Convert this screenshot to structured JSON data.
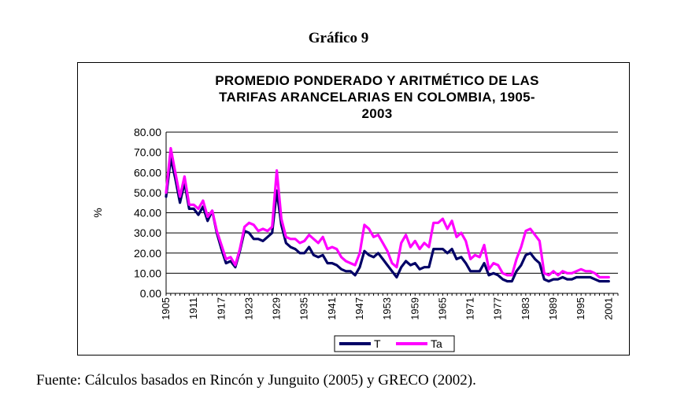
{
  "figure_label": "Gráfico 9",
  "source_note": "Fuente: Cálculos basados en Rincón y Junguito (2005) y GRECO (2002).",
  "chart_data": {
    "type": "line",
    "title_lines": [
      "PROMEDIO PONDERADO Y ARITMÉTICO DE LAS",
      "TARIFAS ARANCELARIAS EN COLOMBIA, 1905-",
      "2003"
    ],
    "ylabel": "%",
    "xlabel": "",
    "ylim": [
      0,
      80
    ],
    "yticks": [
      "0.00",
      "10.00",
      "20.00",
      "30.00",
      "40.00",
      "50.00",
      "60.00",
      "70.00",
      "80.00"
    ],
    "xlim": [
      1905,
      2003
    ],
    "xticks": [
      "1905",
      "1911",
      "1917",
      "1923",
      "1929",
      "1935",
      "1941",
      "1947",
      "1953",
      "1959",
      "1965",
      "1971",
      "1977",
      "1983",
      "1989",
      "1995",
      "2001"
    ],
    "grid": "horizontal",
    "legend_position": "bottom",
    "series": [
      {
        "name": "T",
        "color": "#000066",
        "points": [
          [
            1905,
            48
          ],
          [
            1906,
            67
          ],
          [
            1907,
            57
          ],
          [
            1908,
            45
          ],
          [
            1909,
            55
          ],
          [
            1910,
            42
          ],
          [
            1911,
            42
          ],
          [
            1912,
            39
          ],
          [
            1913,
            43
          ],
          [
            1914,
            36
          ],
          [
            1915,
            41
          ],
          [
            1916,
            30
          ],
          [
            1917,
            22
          ],
          [
            1918,
            15
          ],
          [
            1919,
            16
          ],
          [
            1920,
            13
          ],
          [
            1921,
            21
          ],
          [
            1922,
            31
          ],
          [
            1923,
            30
          ],
          [
            1924,
            27
          ],
          [
            1925,
            27
          ],
          [
            1926,
            26
          ],
          [
            1927,
            28
          ],
          [
            1928,
            30
          ],
          [
            1929,
            51
          ],
          [
            1930,
            34
          ],
          [
            1931,
            25
          ],
          [
            1932,
            23
          ],
          [
            1933,
            22
          ],
          [
            1934,
            20
          ],
          [
            1935,
            20
          ],
          [
            1936,
            23
          ],
          [
            1937,
            19
          ],
          [
            1938,
            18
          ],
          [
            1939,
            19
          ],
          [
            1940,
            15
          ],
          [
            1941,
            15
          ],
          [
            1942,
            14
          ],
          [
            1943,
            12
          ],
          [
            1944,
            11
          ],
          [
            1945,
            11
          ],
          [
            1946,
            9
          ],
          [
            1947,
            13
          ],
          [
            1948,
            21
          ],
          [
            1949,
            19
          ],
          [
            1950,
            18
          ],
          [
            1951,
            20
          ],
          [
            1952,
            17
          ],
          [
            1953,
            14
          ],
          [
            1954,
            11
          ],
          [
            1955,
            8
          ],
          [
            1956,
            13
          ],
          [
            1957,
            16
          ],
          [
            1958,
            14
          ],
          [
            1959,
            15
          ],
          [
            1960,
            12
          ],
          [
            1961,
            13
          ],
          [
            1962,
            13
          ],
          [
            1963,
            22
          ],
          [
            1964,
            22
          ],
          [
            1965,
            22
          ],
          [
            1966,
            20
          ],
          [
            1967,
            22
          ],
          [
            1968,
            17
          ],
          [
            1969,
            18
          ],
          [
            1970,
            15
          ],
          [
            1971,
            11
          ],
          [
            1972,
            11
          ],
          [
            1973,
            11
          ],
          [
            1974,
            15
          ],
          [
            1975,
            9
          ],
          [
            1976,
            10
          ],
          [
            1977,
            9
          ],
          [
            1978,
            7
          ],
          [
            1979,
            6
          ],
          [
            1980,
            6
          ],
          [
            1981,
            11
          ],
          [
            1982,
            14
          ],
          [
            1983,
            19
          ],
          [
            1984,
            20
          ],
          [
            1985,
            17
          ],
          [
            1986,
            15
          ],
          [
            1987,
            7
          ],
          [
            1988,
            6
          ],
          [
            1989,
            7
          ],
          [
            1990,
            7
          ],
          [
            1991,
            8
          ],
          [
            1992,
            7
          ],
          [
            1993,
            7
          ],
          [
            1994,
            8
          ],
          [
            1995,
            8
          ],
          [
            1996,
            8
          ],
          [
            1997,
            8
          ],
          [
            1998,
            7
          ],
          [
            1999,
            6
          ],
          [
            2000,
            6
          ],
          [
            2001,
            6
          ]
        ]
      },
      {
        "name": "Ta",
        "color": "#FF00FF",
        "points": [
          [
            1905,
            50
          ],
          [
            1906,
            72
          ],
          [
            1907,
            60
          ],
          [
            1908,
            48
          ],
          [
            1909,
            58
          ],
          [
            1910,
            44
          ],
          [
            1911,
            44
          ],
          [
            1912,
            42
          ],
          [
            1913,
            46
          ],
          [
            1914,
            38
          ],
          [
            1915,
            41
          ],
          [
            1916,
            31
          ],
          [
            1917,
            24
          ],
          [
            1918,
            17
          ],
          [
            1919,
            18
          ],
          [
            1920,
            14
          ],
          [
            1921,
            22
          ],
          [
            1922,
            33
          ],
          [
            1923,
            35
          ],
          [
            1924,
            34
          ],
          [
            1925,
            31
          ],
          [
            1926,
            32
          ],
          [
            1927,
            31
          ],
          [
            1928,
            33
          ],
          [
            1929,
            61
          ],
          [
            1930,
            37
          ],
          [
            1931,
            28
          ],
          [
            1932,
            27
          ],
          [
            1933,
            27
          ],
          [
            1934,
            25
          ],
          [
            1935,
            26
          ],
          [
            1936,
            29
          ],
          [
            1937,
            27
          ],
          [
            1938,
            25
          ],
          [
            1939,
            28
          ],
          [
            1940,
            22
          ],
          [
            1941,
            23
          ],
          [
            1942,
            22
          ],
          [
            1943,
            18
          ],
          [
            1944,
            16
          ],
          [
            1945,
            15
          ],
          [
            1946,
            14
          ],
          [
            1947,
            20
          ],
          [
            1948,
            34
          ],
          [
            1949,
            32
          ],
          [
            1950,
            28
          ],
          [
            1951,
            29
          ],
          [
            1952,
            25
          ],
          [
            1953,
            21
          ],
          [
            1954,
            15
          ],
          [
            1955,
            13
          ],
          [
            1956,
            25
          ],
          [
            1957,
            29
          ],
          [
            1958,
            23
          ],
          [
            1959,
            26
          ],
          [
            1960,
            22
          ],
          [
            1961,
            25
          ],
          [
            1962,
            23
          ],
          [
            1963,
            35
          ],
          [
            1964,
            35
          ],
          [
            1965,
            37
          ],
          [
            1966,
            32
          ],
          [
            1967,
            36
          ],
          [
            1968,
            28
          ],
          [
            1969,
            30
          ],
          [
            1970,
            26
          ],
          [
            1971,
            17
          ],
          [
            1972,
            19
          ],
          [
            1973,
            18
          ],
          [
            1974,
            24
          ],
          [
            1975,
            12
          ],
          [
            1976,
            15
          ],
          [
            1977,
            14
          ],
          [
            1978,
            10
          ],
          [
            1979,
            9
          ],
          [
            1980,
            9
          ],
          [
            1981,
            17
          ],
          [
            1982,
            23
          ],
          [
            1983,
            31
          ],
          [
            1984,
            32
          ],
          [
            1985,
            29
          ],
          [
            1986,
            26
          ],
          [
            1987,
            10
          ],
          [
            1988,
            9
          ],
          [
            1989,
            11
          ],
          [
            1990,
            9
          ],
          [
            1991,
            11
          ],
          [
            1992,
            10
          ],
          [
            1993,
            10
          ],
          [
            1994,
            11
          ],
          [
            1995,
            12
          ],
          [
            1996,
            11
          ],
          [
            1997,
            11
          ],
          [
            1998,
            10
          ],
          [
            1999,
            8
          ],
          [
            2000,
            8
          ],
          [
            2001,
            8
          ]
        ]
      }
    ]
  }
}
